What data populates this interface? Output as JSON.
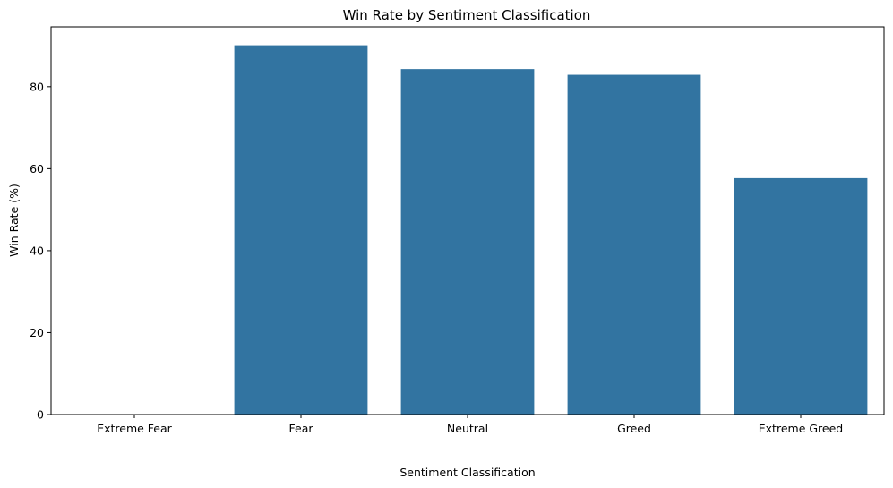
{
  "chart_data": {
    "type": "bar",
    "title": "Win Rate by Sentiment Classification",
    "xlabel": "Sentiment Classification",
    "ylabel": "Win Rate (%)",
    "categories": [
      "Extreme Fear",
      "Fear",
      "Neutral",
      "Greed",
      "Extreme Greed"
    ],
    "values": [
      0,
      90.1,
      84.3,
      82.9,
      57.7
    ],
    "ylim": [
      0,
      94.6
    ],
    "yticks": [
      0,
      20,
      40,
      60,
      80
    ],
    "bar_color": "#3274a1",
    "grid": false,
    "legend": "none"
  }
}
